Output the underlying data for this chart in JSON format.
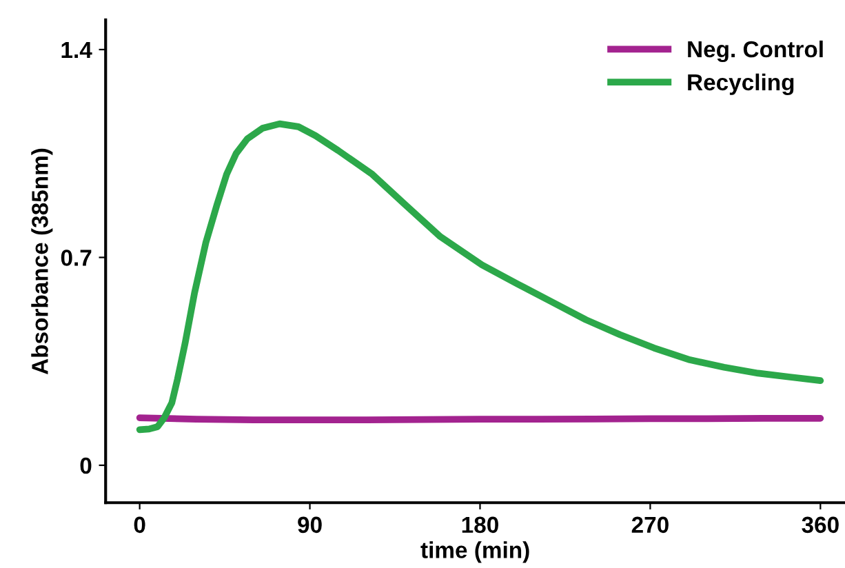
{
  "chart_data": {
    "type": "line",
    "xlabel": "time (min)",
    "ylabel": "Absorbance (385nm)",
    "xlim": [
      -18,
      373
    ],
    "ylim": [
      -0.126,
      1.5
    ],
    "xticks": [
      0,
      90,
      180,
      270,
      360
    ],
    "yticks": [
      0,
      0.7,
      1.4
    ],
    "grid": false,
    "legend": "top right",
    "marker": "none",
    "line_style": "solid",
    "series": [
      {
        "name": "Neg. Control",
        "color": "#a3238f",
        "x": [
          0,
          30,
          60,
          90,
          120,
          150,
          180,
          210,
          240,
          270,
          300,
          330,
          360
        ],
        "values": [
          0.16,
          0.155,
          0.153,
          0.153,
          0.153,
          0.154,
          0.155,
          0.155,
          0.156,
          0.157,
          0.157,
          0.158,
          0.158
        ]
      },
      {
        "name": "Recycling",
        "color": "#2ca84a",
        "x": [
          0,
          5,
          9.5,
          13,
          17,
          20,
          24,
          29,
          35,
          41,
          46,
          51,
          57,
          65,
          74,
          84,
          93,
          105,
          123,
          140,
          159,
          181,
          200,
          218,
          236,
          254,
          272,
          291,
          309,
          327,
          344,
          360
        ],
        "values": [
          0.12,
          0.122,
          0.13,
          0.16,
          0.21,
          0.29,
          0.41,
          0.58,
          0.75,
          0.88,
          0.98,
          1.05,
          1.1,
          1.135,
          1.15,
          1.14,
          1.11,
          1.06,
          0.98,
          0.88,
          0.77,
          0.675,
          0.61,
          0.55,
          0.49,
          0.44,
          0.395,
          0.355,
          0.33,
          0.31,
          0.297,
          0.285
        ]
      }
    ]
  }
}
